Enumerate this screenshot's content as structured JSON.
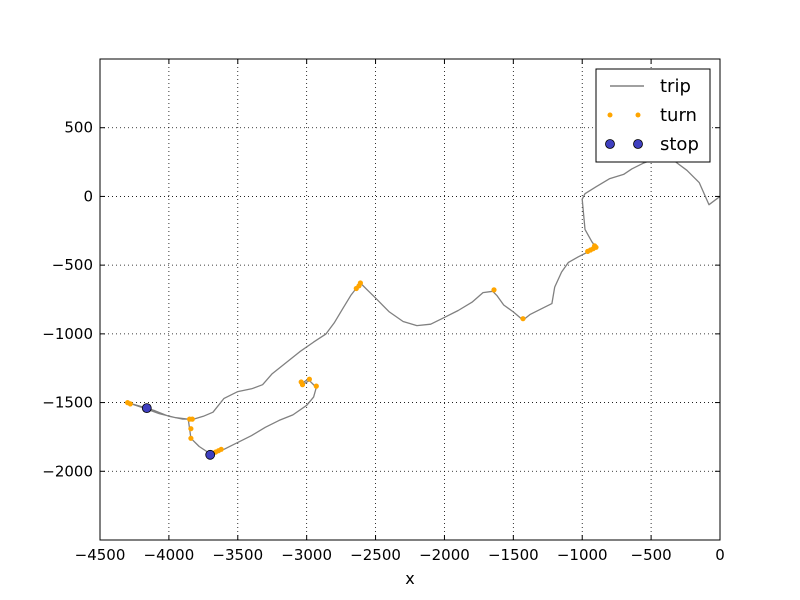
{
  "chart_data": {
    "type": "line",
    "xlabel": "x",
    "ylabel": "",
    "xlim": [
      -4500,
      0
    ],
    "ylim": [
      -2500,
      1000
    ],
    "xticks": [
      -4500,
      -4000,
      -3500,
      -3000,
      -2500,
      -2000,
      -1500,
      -1000,
      -500,
      0
    ],
    "yticks": [
      500,
      0,
      -500,
      -1000,
      -1500,
      -2000
    ],
    "xtick_labels": [
      "−4500",
      "−4000",
      "−3500",
      "−3000",
      "−2500",
      "−2000",
      "−1500",
      "−1000",
      "−500",
      "0"
    ],
    "ytick_labels": [
      "500",
      "0",
      "−500",
      "−1000",
      "−1500",
      "−2000"
    ],
    "grid": true,
    "legend_position": "top-right",
    "colors": {
      "trip": "#808080",
      "turn": "#ffa500",
      "stop": "#3f3fbf"
    },
    "series": [
      {
        "name": "trip",
        "kind": "line",
        "points": [
          [
            0,
            0
          ],
          [
            -80,
            -60
          ],
          [
            -150,
            100
          ],
          [
            -240,
            190
          ],
          [
            -320,
            250
          ],
          [
            -400,
            300
          ],
          [
            -480,
            270
          ],
          [
            -560,
            240
          ],
          [
            -640,
            200
          ],
          [
            -700,
            160
          ],
          [
            -800,
            130
          ],
          [
            -900,
            70
          ],
          [
            -980,
            20
          ],
          [
            -1000,
            -20
          ],
          [
            -990,
            -130
          ],
          [
            -980,
            -240
          ],
          [
            -930,
            -330
          ],
          [
            -900,
            -370
          ],
          [
            -950,
            -400
          ],
          [
            -1030,
            -440
          ],
          [
            -1100,
            -480
          ],
          [
            -1150,
            -550
          ],
          [
            -1200,
            -660
          ],
          [
            -1220,
            -780
          ],
          [
            -1280,
            -810
          ],
          [
            -1380,
            -860
          ],
          [
            -1430,
            -900
          ],
          [
            -1500,
            -840
          ],
          [
            -1570,
            -790
          ],
          [
            -1620,
            -720
          ],
          [
            -1650,
            -690
          ],
          [
            -1720,
            -700
          ],
          [
            -1800,
            -770
          ],
          [
            -1900,
            -830
          ],
          [
            -2000,
            -880
          ],
          [
            -2100,
            -930
          ],
          [
            -2200,
            -940
          ],
          [
            -2300,
            -910
          ],
          [
            -2400,
            -840
          ],
          [
            -2500,
            -740
          ],
          [
            -2560,
            -680
          ],
          [
            -2610,
            -630
          ],
          [
            -2680,
            -720
          ],
          [
            -2740,
            -820
          ],
          [
            -2800,
            -920
          ],
          [
            -2860,
            -1000
          ],
          [
            -2950,
            -1060
          ],
          [
            -3050,
            -1130
          ],
          [
            -3150,
            -1210
          ],
          [
            -3250,
            -1290
          ],
          [
            -3320,
            -1370
          ],
          [
            -3400,
            -1400
          ],
          [
            -3500,
            -1420
          ],
          [
            -3600,
            -1470
          ],
          [
            -3680,
            -1570
          ],
          [
            -3750,
            -1600
          ],
          [
            -3820,
            -1620
          ],
          [
            -3900,
            -1620
          ],
          [
            -4000,
            -1600
          ],
          [
            -4100,
            -1560
          ],
          [
            -4160,
            -1540
          ],
          [
            -4300,
            -1500
          ],
          [
            -4180,
            -1540
          ],
          [
            -4070,
            -1580
          ],
          [
            -3950,
            -1610
          ],
          [
            -3860,
            -1620
          ],
          [
            -3850,
            -1690
          ],
          [
            -3840,
            -1760
          ],
          [
            -3780,
            -1820
          ],
          [
            -3720,
            -1860
          ],
          [
            -3700,
            -1880
          ],
          [
            -3650,
            -1860
          ],
          [
            -3600,
            -1840
          ],
          [
            -3500,
            -1790
          ],
          [
            -3400,
            -1740
          ],
          [
            -3300,
            -1680
          ],
          [
            -3200,
            -1630
          ],
          [
            -3100,
            -1590
          ],
          [
            -3000,
            -1520
          ],
          [
            -2950,
            -1460
          ],
          [
            -2930,
            -1390
          ],
          [
            -2980,
            -1340
          ],
          [
            -3030,
            -1370
          ],
          [
            -3020,
            -1350
          ],
          [
            -2990,
            -1330
          ]
        ]
      },
      {
        "name": "turn",
        "kind": "markers",
        "points": [
          [
            -4300,
            -1500
          ],
          [
            -4280,
            -1510
          ],
          [
            -3850,
            -1620
          ],
          [
            -3830,
            -1620
          ],
          [
            -3840,
            -1690
          ],
          [
            -3840,
            -1760
          ],
          [
            -3700,
            -1880
          ],
          [
            -3680,
            -1870
          ],
          [
            -3660,
            -1860
          ],
          [
            -3640,
            -1850
          ],
          [
            -3620,
            -1840
          ],
          [
            -3040,
            -1350
          ],
          [
            -3030,
            -1370
          ],
          [
            -2980,
            -1330
          ],
          [
            -2930,
            -1380
          ],
          [
            -2610,
            -630
          ],
          [
            -2620,
            -650
          ],
          [
            -2640,
            -670
          ],
          [
            -1640,
            -680
          ],
          [
            -1430,
            -890
          ],
          [
            -960,
            -400
          ],
          [
            -940,
            -390
          ],
          [
            -920,
            -380
          ],
          [
            -910,
            -360
          ],
          [
            -900,
            -370
          ]
        ]
      },
      {
        "name": "stop",
        "kind": "markers",
        "points": [
          [
            -4160,
            -1540
          ],
          [
            -3700,
            -1880
          ]
        ]
      }
    ]
  }
}
